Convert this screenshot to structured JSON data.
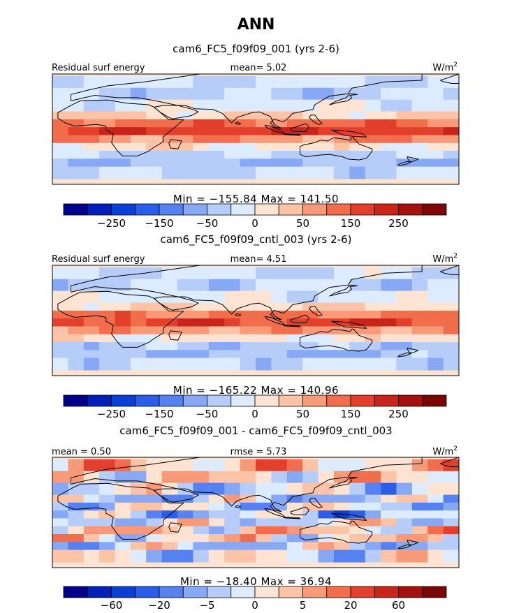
{
  "page": {
    "title": "ANN"
  },
  "chart_data": [
    {
      "type": "heatmap",
      "title": "cam6_FC5_f09f09_001 (yrs 2-6)",
      "left_label": "Residual surf energy",
      "center_label": "mean=   5.02",
      "mean": 5.02,
      "units_base": "W/m",
      "units_exp": "2",
      "min_max_label": "Min = −155.84  Max = 141.50",
      "min": -155.84,
      "max": 141.5,
      "colorbar": {
        "ticks": [
          "−250",
          "−150",
          "−50",
          "0",
          "50",
          "150",
          "250"
        ],
        "colors": [
          "#00008a",
          "#0020b8",
          "#0a3fd6",
          "#2a5ee8",
          "#5582f0",
          "#86a8f5",
          "#b6cdf9",
          "#dcebfd",
          "#fde3d2",
          "#fcc3a6",
          "#f89a77",
          "#f16d4c",
          "#e2402c",
          "#c9241a",
          "#a5120e",
          "#7c0505"
        ]
      },
      "field": {
        "bands": [
          {
            "lat": 60,
            "v": -0.4
          },
          {
            "lat": 45,
            "v": -0.6
          },
          {
            "lat": 30,
            "v": -0.2
          },
          {
            "lat": 15,
            "v": 0.4
          },
          {
            "lat": 5,
            "v": 1.6
          },
          {
            "lat": -5,
            "v": 2.1
          },
          {
            "lat": -15,
            "v": 1.2
          },
          {
            "lat": -25,
            "v": 0.2
          },
          {
            "lat": -35,
            "v": -0.6
          },
          {
            "lat": -45,
            "v": -0.9
          },
          {
            "lat": -55,
            "v": -0.5
          }
        ]
      }
    },
    {
      "type": "heatmap",
      "title": "cam6_FC5_f09f09_cntl_003 (yrs 2-6)",
      "left_label": "Residual surf energy",
      "center_label": "mean=   4.51",
      "mean": 4.51,
      "units_base": "W/m",
      "units_exp": "2",
      "min_max_label": "Min = −165.22  Max = 140.96",
      "min": -165.22,
      "max": 140.96,
      "colorbar": {
        "ticks": [
          "−250",
          "−150",
          "−50",
          "0",
          "50",
          "150",
          "250"
        ],
        "colors": [
          "#00008a",
          "#0020b8",
          "#0a3fd6",
          "#2a5ee8",
          "#5582f0",
          "#86a8f5",
          "#b6cdf9",
          "#dcebfd",
          "#fde3d2",
          "#fcc3a6",
          "#f89a77",
          "#f16d4c",
          "#e2402c",
          "#c9241a",
          "#a5120e",
          "#7c0505"
        ]
      },
      "field": {
        "bands": [
          {
            "lat": 60,
            "v": -0.4
          },
          {
            "lat": 45,
            "v": -0.6
          },
          {
            "lat": 30,
            "v": -0.2
          },
          {
            "lat": 15,
            "v": 0.4
          },
          {
            "lat": 5,
            "v": 1.5
          },
          {
            "lat": -5,
            "v": 2.0
          },
          {
            "lat": -15,
            "v": 1.1
          },
          {
            "lat": -25,
            "v": 0.2
          },
          {
            "lat": -35,
            "v": -0.7
          },
          {
            "lat": -45,
            "v": -0.9
          },
          {
            "lat": -55,
            "v": -0.5
          }
        ]
      }
    },
    {
      "type": "heatmap",
      "title": "cam6_FC5_f09f09_001 - cam6_FC5_f09f09_cntl_003",
      "left_label": "mean =   0.50",
      "mean": 0.5,
      "center_label": "rmse =   5.73",
      "rmse": 5.73,
      "units_base": "W/m",
      "units_exp": "2",
      "min_max_label": "Min = −18.40  Max =   36.94",
      "min": -18.4,
      "max": 36.94,
      "colorbar": {
        "ticks": [
          "−60",
          "−20",
          "−5",
          "0",
          "5",
          "20",
          "60"
        ],
        "colors": [
          "#00008a",
          "#0020b8",
          "#0a3fd6",
          "#2a5ee8",
          "#5582f0",
          "#86a8f5",
          "#b6cdf9",
          "#dcebfd",
          "#fde3d2",
          "#fcc3a6",
          "#f89a77",
          "#f16d4c",
          "#e2402c",
          "#c9241a",
          "#a5120e",
          "#7c0505"
        ]
      },
      "field": {
        "bands": [
          {
            "lat": 60,
            "v": 0.6
          },
          {
            "lat": 45,
            "v": 0.3
          },
          {
            "lat": 30,
            "v": -0.4
          },
          {
            "lat": 15,
            "v": -0.6
          },
          {
            "lat": 5,
            "v": -0.3
          },
          {
            "lat": -5,
            "v": -0.8
          },
          {
            "lat": -15,
            "v": -0.2
          },
          {
            "lat": -25,
            "v": 0.5
          },
          {
            "lat": -35,
            "v": 0.2
          },
          {
            "lat": -45,
            "v": -0.5
          },
          {
            "lat": -55,
            "v": -0.2
          }
        ]
      }
    }
  ]
}
